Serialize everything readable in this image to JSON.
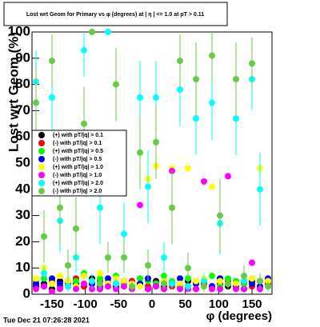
{
  "chart_data": {
    "type": "scatter",
    "title": "Lost wrt Geom for Primary vs φ (degrees) at | η | <= 1.0 at pT > 0.11",
    "x_label": "φ (degrees)",
    "y_label": "Lost wrt Geom (%)",
    "timestamp": "Tue Dec 21 07:26:28 2021",
    "xlim": [
      -180,
      180
    ],
    "ylim": [
      0,
      100
    ],
    "xticks": [
      -150,
      -100,
      -50,
      0,
      50,
      100,
      150
    ],
    "yticks": [
      0,
      10,
      20,
      30,
      40,
      50,
      60,
      70,
      80,
      90,
      100
    ],
    "grid": false,
    "legend": "left",
    "x": [
      -174,
      -162,
      -150,
      -138,
      -126,
      -114,
      -102,
      -90,
      -78,
      -66,
      -54,
      -42,
      -30,
      -18,
      -6,
      6,
      18,
      30,
      42,
      54,
      66,
      78,
      90,
      102,
      114,
      126,
      138,
      150,
      162,
      174
    ],
    "series": [
      {
        "name": "(+) with pT/|q| > 0.1",
        "color": "#000000",
        "values": [
          3,
          4,
          2,
          5,
          3,
          4,
          3,
          6,
          2,
          4,
          3,
          5,
          3,
          4,
          2,
          5,
          3,
          4,
          3,
          5,
          2,
          4,
          3,
          6,
          3,
          4,
          2,
          5,
          3,
          4
        ]
      },
      {
        "name": "(-) with pT/|q| > 0.1",
        "color": "#ff0000",
        "values": [
          4,
          3,
          5,
          3,
          4,
          6,
          3,
          4,
          5,
          3,
          4,
          3,
          5,
          4,
          3,
          4,
          5,
          3,
          4,
          3,
          5,
          4,
          3,
          4,
          5,
          3,
          4,
          3,
          5,
          4
        ]
      },
      {
        "name": "(+) with pT/|q| > 0.5",
        "color": "#00ff00",
        "values": [
          5,
          6,
          4,
          7,
          3,
          5,
          8,
          4,
          6,
          5,
          7,
          4,
          3,
          6,
          5,
          4,
          7,
          5,
          3,
          6,
          4,
          5,
          7,
          3,
          6,
          5,
          4,
          6,
          3,
          5
        ]
      },
      {
        "name": "(-) with pT/|q| > 0.5",
        "color": "#0000ff",
        "values": [
          4,
          3,
          6,
          4,
          5,
          3,
          7,
          4,
          3,
          6,
          4,
          5,
          3,
          4,
          6,
          3,
          5,
          4,
          6,
          3,
          4,
          5,
          3,
          6,
          4,
          3,
          5,
          4,
          3,
          6
        ]
      },
      {
        "name": "(+) with pT/|q| > 1.0",
        "color": "#ffff00",
        "values": [
          6,
          10,
          4,
          7,
          5,
          3,
          7,
          5,
          8,
          4,
          6,
          5,
          4,
          3,
          44,
          49,
          5,
          48,
          4,
          48,
          5,
          6,
          41,
          5,
          4,
          4,
          7,
          6,
          48,
          5
        ]
      },
      {
        "name": "(-) with pT/|q| > 1.0",
        "color": "#ff00ff",
        "values": [
          2,
          3,
          1,
          2,
          3,
          2,
          4,
          2,
          2,
          3,
          2,
          3,
          2,
          34,
          2,
          3,
          2,
          47,
          2,
          2,
          2,
          43,
          2,
          2,
          45,
          2,
          2,
          12,
          2,
          3
        ]
      },
      {
        "name": "(+) with pT/|q| > 2.0",
        "color": "#00ffff",
        "values": [
          81,
          8,
          75,
          28,
          3,
          14,
          93,
          5,
          33,
          100,
          4,
          23,
          3,
          75,
          41,
          75,
          14,
          4,
          78,
          3,
          67,
          5,
          73,
          27,
          4,
          67,
          5,
          82,
          40,
          3
        ],
        "errors": [
          12,
          3,
          14,
          12,
          2,
          6,
          10,
          3,
          14,
          0,
          2,
          12,
          2,
          14,
          14,
          14,
          6,
          2,
          14,
          2,
          14,
          3,
          14,
          12,
          2,
          14,
          3,
          12,
          14,
          2
        ]
      },
      {
        "name": "(-) with pT/|q| > 2.0",
        "color": "#66cc44",
        "values": [
          73,
          22,
          89,
          33,
          11,
          25,
          65,
          100,
          4,
          14,
          80,
          14,
          3,
          54,
          11,
          58,
          4,
          33,
          89,
          10,
          82,
          3,
          91,
          30,
          4,
          82,
          7,
          88,
          5,
          3
        ],
        "errors": [
          14,
          10,
          10,
          14,
          6,
          12,
          14,
          0,
          2,
          6,
          14,
          6,
          2,
          14,
          6,
          14,
          2,
          14,
          10,
          6,
          14,
          2,
          10,
          14,
          2,
          14,
          4,
          10,
          3,
          2
        ]
      }
    ]
  }
}
